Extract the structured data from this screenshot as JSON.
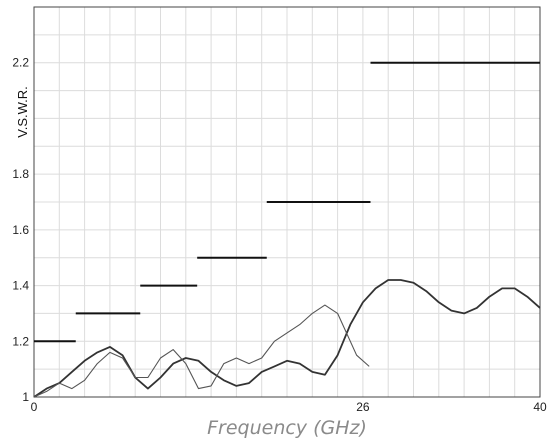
{
  "chart_data": {
    "type": "line",
    "title": "",
    "xlabel": "Frequency (GHz)",
    "ylabel": "V.S.W.R.",
    "xlim": [
      0,
      40
    ],
    "ylim": [
      1.0,
      2.4
    ],
    "grid": true,
    "x_ticks": [
      {
        "value": 0,
        "label": "0"
      },
      {
        "value": 26,
        "label": "26"
      },
      {
        "value": 40,
        "label": "40"
      }
    ],
    "y_ticks": [
      {
        "value": 1.0,
        "label": "1"
      },
      {
        "value": 1.2,
        "label": "1.2"
      },
      {
        "value": 1.4,
        "label": "1.4"
      },
      {
        "value": 1.6,
        "label": "1.6"
      },
      {
        "value": 1.8,
        "label": "1.8"
      },
      {
        "value": 2.2,
        "label": "2.2"
      }
    ],
    "limits": [
      {
        "x_start": 0.0,
        "x_end": 3.3,
        "y": 1.2
      },
      {
        "x_start": 3.3,
        "x_end": 8.4,
        "y": 1.3
      },
      {
        "x_start": 8.4,
        "x_end": 12.9,
        "y": 1.4
      },
      {
        "x_start": 12.9,
        "x_end": 18.4,
        "y": 1.5
      },
      {
        "x_start": 18.4,
        "x_end": 26.6,
        "y": 1.7
      },
      {
        "x_start": 26.6,
        "x_end": 40.0,
        "y": 2.2
      }
    ],
    "series": [
      {
        "x": [
          0,
          1,
          2,
          3,
          4,
          5,
          6,
          7,
          8,
          9,
          10,
          11,
          12,
          13,
          14,
          15,
          16,
          17,
          18,
          19,
          20,
          21,
          22,
          23,
          24,
          25,
          26,
          27,
          28,
          29,
          30,
          31,
          32,
          33,
          34,
          35,
          36,
          37,
          38,
          39,
          40
        ],
        "y": [
          1.0,
          1.03,
          1.05,
          1.09,
          1.13,
          1.16,
          1.18,
          1.15,
          1.07,
          1.03,
          1.07,
          1.12,
          1.14,
          1.13,
          1.09,
          1.06,
          1.04,
          1.05,
          1.09,
          1.11,
          1.13,
          1.12,
          1.09,
          1.08,
          1.15,
          1.26,
          1.34,
          1.39,
          1.42,
          1.42,
          1.41,
          1.38,
          1.34,
          1.31,
          1.3,
          1.32,
          1.36,
          1.39,
          1.39,
          1.36,
          1.32
        ],
        "color": "#333333"
      },
      {
        "x": [
          0,
          1,
          2,
          3,
          4,
          5,
          6,
          7,
          8,
          9,
          10,
          11,
          12,
          13,
          14,
          15,
          16,
          17,
          18,
          19,
          20,
          21,
          22,
          23,
          24,
          25,
          25.5,
          26.5
        ],
        "y": [
          1.0,
          1.02,
          1.05,
          1.03,
          1.06,
          1.12,
          1.16,
          1.14,
          1.07,
          1.07,
          1.14,
          1.17,
          1.12,
          1.03,
          1.04,
          1.12,
          1.14,
          1.12,
          1.14,
          1.2,
          1.23,
          1.26,
          1.3,
          1.33,
          1.3,
          1.2,
          1.15,
          1.11
        ],
        "color": "#555555"
      }
    ]
  }
}
